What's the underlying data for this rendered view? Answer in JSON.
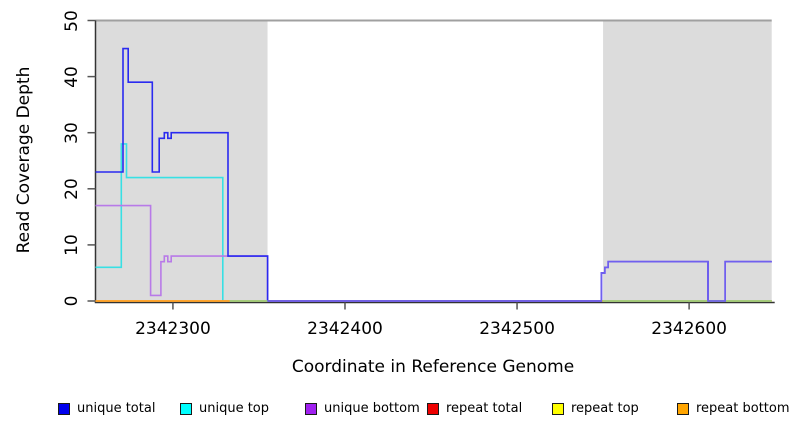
{
  "figure": {
    "x_axis": {
      "title": "Coordinate in Reference Genome",
      "ticks": [
        2342300,
        2342400,
        2342500,
        2342600
      ]
    },
    "y_axis": {
      "title": "Read Coverage Depth",
      "ticks": [
        0,
        10,
        20,
        30,
        40,
        50
      ]
    },
    "legend": [
      {
        "label": "unique total",
        "color": "#0000ee",
        "x": 58
      },
      {
        "label": "unique top",
        "color": "#00ffff",
        "x": 180
      },
      {
        "label": "unique bottom",
        "color": "#a020f0",
        "x": 305
      },
      {
        "label": "repeat total",
        "color": "#ee0000",
        "x": 427
      },
      {
        "label": "repeat top",
        "color": "#ffff00",
        "x": 552
      },
      {
        "label": "repeat bottom",
        "color": "#ffa500",
        "x": 677
      }
    ]
  },
  "colors": {
    "background": "#ffffff",
    "shaded_region": "#dcdcdc",
    "plot_top_border": "#a0a0a0",
    "axis": "#333333",
    "tick": "#555555",
    "overlap_violet": "#7060ee",
    "overlap_green": "#92d092"
  },
  "chart_data": {
    "type": "line",
    "title": "",
    "xlabel": "Coordinate in Reference Genome",
    "ylabel": "Read Coverage Depth",
    "xlim": [
      2342255,
      2342648
    ],
    "ylim": [
      0,
      50
    ],
    "grid": false,
    "legend_position": "bottom",
    "shaded_regions": [
      {
        "from": 2342255,
        "to": 2342355
      },
      {
        "from": 2342550,
        "to": 2342648
      }
    ],
    "series": [
      {
        "name": "unique total",
        "color": "#0000ee",
        "line_color": "#2a2af0",
        "steps": [
          [
            2342255,
            23
          ],
          [
            2342271,
            45
          ],
          [
            2342274,
            39
          ],
          [
            2342288,
            23
          ],
          [
            2342292,
            29
          ],
          [
            2342295,
            30
          ],
          [
            2342297,
            29
          ],
          [
            2342299,
            30
          ],
          [
            2342332,
            8
          ],
          [
            2342355,
            0
          ],
          [
            2342549,
            5
          ],
          [
            2342551,
            6
          ],
          [
            2342553,
            7
          ],
          [
            2342611,
            0
          ],
          [
            2342621,
            7
          ]
        ],
        "end": 2342648
      },
      {
        "name": "unique top",
        "color": "#00ffff",
        "line_color": "#38e0e4",
        "steps": [
          [
            2342255,
            6
          ],
          [
            2342270,
            28
          ],
          [
            2342273,
            22
          ],
          [
            2342329,
            0
          ]
        ],
        "end": 2342648
      },
      {
        "name": "unique bottom",
        "color": "#a020f0",
        "line_color": "#b87ae8",
        "steps": [
          [
            2342255,
            17
          ],
          [
            2342287,
            1
          ],
          [
            2342293,
            7
          ],
          [
            2342295,
            8
          ],
          [
            2342297,
            7
          ],
          [
            2342299,
            8
          ],
          [
            2342355,
            0
          ],
          [
            2342549,
            5
          ],
          [
            2342551,
            6
          ],
          [
            2342553,
            7
          ],
          [
            2342611,
            0
          ],
          [
            2342621,
            7
          ]
        ],
        "end": 2342648
      },
      {
        "name": "repeat total",
        "color": "#ee0000",
        "line_color": "#ee0000",
        "steps": [
          [
            2342255,
            0
          ]
        ],
        "end": 2342648
      },
      {
        "name": "repeat top",
        "color": "#ffff00",
        "line_color": "#ffff00",
        "steps": [
          [
            2342255,
            0
          ]
        ],
        "end": 2342648
      },
      {
        "name": "repeat bottom",
        "color": "#ffa500",
        "line_color": "#ff9d2e",
        "steps": [
          [
            2342255,
            0
          ]
        ],
        "end": 2342333
      }
    ],
    "draw_order": [
      "unique top",
      "repeat total",
      "repeat top",
      "repeat bottom",
      "unique bottom",
      "unique total"
    ],
    "overlap_rendering": {
      "note": "where unique total and unique bottom coincide the line appears violet; where lines at 0 coincide with repeat lines they appear green",
      "violet_path": {
        "steps": [
          [
            2342355,
            0
          ],
          [
            2342549,
            5
          ],
          [
            2342551,
            6
          ],
          [
            2342553,
            7
          ],
          [
            2342611,
            0
          ],
          [
            2342621,
            7
          ]
        ],
        "end": 2342648
      },
      "green_segments": [
        [
          2342333,
          2342355
        ],
        [
          2342550,
          2342648
        ]
      ]
    }
  }
}
